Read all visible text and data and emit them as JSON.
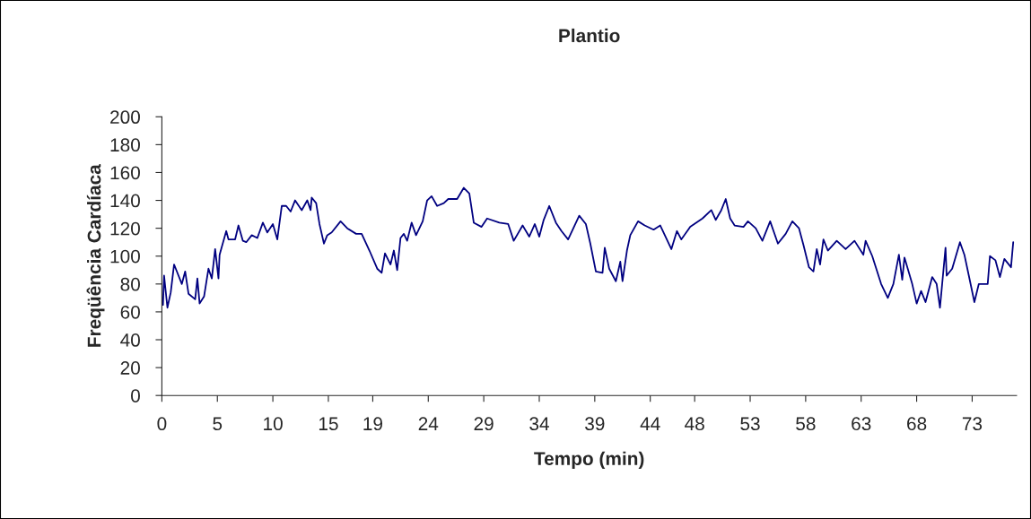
{
  "chart_data": {
    "type": "line",
    "title": "Plantio",
    "xlabel": "Tempo (min)",
    "ylabel": "Freqüência Cardíaca",
    "x": [
      0,
      0.1,
      0.2,
      0.5,
      0.8,
      1.1,
      1.3,
      1.8,
      2.1,
      2.4,
      3.0,
      3.2,
      3.4,
      3.8,
      4.2,
      4.5,
      4.8,
      5.1,
      5.2,
      5.8,
      6.0,
      6.6,
      6.9,
      7.3,
      7.6,
      8.1,
      8.6,
      9.1,
      9.5,
      10.0,
      10.4,
      10.8,
      11.2,
      11.6,
      12.0,
      12.6,
      13.1,
      13.4,
      13.5,
      13.9,
      14.2,
      14.6,
      14.9,
      15.3,
      16.1,
      16.7,
      17.5,
      18.0,
      18.7,
      19.4,
      19.8,
      20.1,
      20.6,
      20.9,
      21.2,
      21.5,
      21.8,
      22.1,
      22.5,
      22.9,
      23.5,
      23.9,
      24.3,
      24.8,
      25.4,
      25.8,
      26.6,
      27.2,
      27.7,
      28.1,
      28.8,
      29.3,
      30.4,
      31.2,
      31.7,
      32.5,
      33.1,
      33.6,
      34.0,
      34.4,
      34.9,
      35.5,
      36.0,
      36.6,
      37.6,
      38.2,
      38.6,
      39.1,
      39.7,
      39.9,
      40.3,
      40.9,
      41.3,
      41.5,
      41.9,
      42.2,
      42.9,
      43.5,
      44.3,
      44.9,
      45.9,
      46.4,
      46.8,
      47.6,
      48.7,
      49.5,
      49.9,
      50.4,
      50.8,
      51.2,
      51.6,
      52.4,
      52.8,
      53.5,
      54.1,
      54.8,
      55.5,
      56.2,
      56.8,
      57.4,
      57.8,
      58.3,
      58.7,
      59.0,
      59.3,
      59.6,
      60.0,
      60.8,
      61.6,
      62.4,
      63.2,
      63.4,
      64.0,
      64.8,
      65.4,
      65.9,
      66.4,
      66.7,
      66.9,
      67.6,
      68.0,
      68.4,
      68.8,
      69.4,
      69.8,
      70.1,
      70.6,
      70.7,
      71.2,
      71.9,
      72.3,
      72.7,
      73.2,
      73.6,
      74.4,
      74.6,
      75.1,
      75.5,
      75.9,
      76.5,
      76.7
    ],
    "series": [
      {
        "color": "#000080",
        "values": [
          68,
          65,
          86,
          63,
          74,
          94,
          90,
          80,
          89,
          73,
          69,
          84,
          66,
          71,
          91,
          84,
          105,
          84,
          101,
          118,
          112,
          112,
          122,
          111,
          110,
          115,
          113,
          124,
          117,
          123,
          112,
          136,
          136,
          132,
          140,
          133,
          140,
          133,
          142,
          138,
          123,
          109,
          115,
          117,
          125,
          120,
          116,
          116,
          104,
          91,
          88,
          102,
          94,
          104,
          90,
          113,
          116,
          111,
          124,
          115,
          125,
          140,
          143,
          136,
          138,
          141,
          141,
          149,
          145,
          124,
          121,
          127,
          124,
          123,
          111,
          122,
          114,
          123,
          114,
          126,
          136,
          124,
          118,
          112,
          129,
          123,
          109,
          89,
          88,
          106,
          91,
          82,
          96,
          82,
          104,
          115,
          125,
          122,
          119,
          122,
          105,
          118,
          112,
          121,
          127,
          133,
          126,
          133,
          141,
          127,
          122,
          121,
          125,
          120,
          111,
          125,
          109,
          116,
          125,
          120,
          108,
          92,
          89,
          105,
          94,
          112,
          104,
          111,
          105,
          111,
          101,
          111,
          100,
          80,
          70,
          80,
          101,
          83,
          99,
          80,
          66,
          75,
          67,
          85,
          80,
          63,
          106,
          86,
          91,
          110,
          101,
          86,
          67,
          80,
          80,
          100,
          97,
          85,
          98,
          92,
          110
        ]
      }
    ],
    "xlim": [
      0,
      77
    ],
    "ylim": [
      0,
      200
    ],
    "yticks": [
      0,
      20,
      40,
      60,
      80,
      100,
      120,
      140,
      160,
      180,
      200
    ],
    "xticks": [
      0,
      5,
      10,
      15,
      19,
      24,
      29,
      34,
      39,
      44,
      48,
      53,
      58,
      63,
      68,
      73
    ],
    "grid": false,
    "legend": false,
    "marker": "none",
    "line_style": "solid"
  }
}
